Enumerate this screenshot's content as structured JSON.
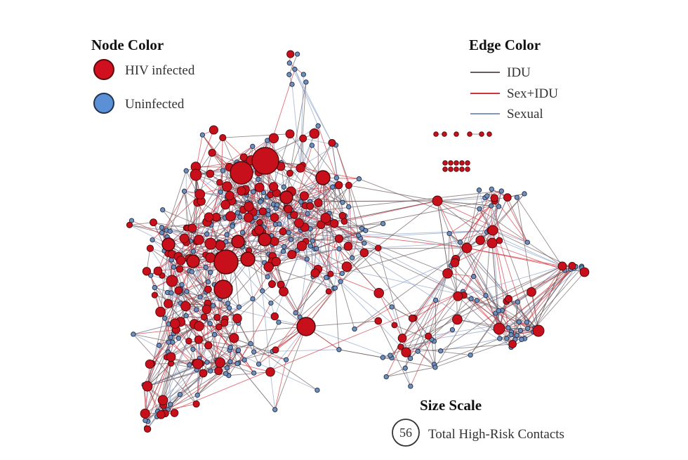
{
  "legend_node": {
    "title": "Node Color",
    "items": [
      {
        "label": "HIV infected",
        "color": "#d0101e",
        "stroke": "#5a0a0a"
      },
      {
        "label": "Uninfected",
        "color": "#5b8fd6",
        "stroke": "#22334f"
      }
    ]
  },
  "legend_edge": {
    "title": "Edge Color",
    "items": [
      {
        "label": "IDU",
        "color": "#6b5a5e"
      },
      {
        "label": "Sex+IDU",
        "color": "#d2323c"
      },
      {
        "label": "Sexual",
        "color": "#7f96c3"
      }
    ]
  },
  "size_scale": {
    "title": "Size Scale",
    "value": "56",
    "label": "Total High-Risk Contacts"
  },
  "network": {
    "node_colors": {
      "infected": "#c8101c",
      "uninfected": "#6f8fbf"
    },
    "edge_colors": {
      "idu": "#6b5a5e",
      "sex_idu": "#d2323c",
      "sexual": "#8aa0c8"
    }
  }
}
